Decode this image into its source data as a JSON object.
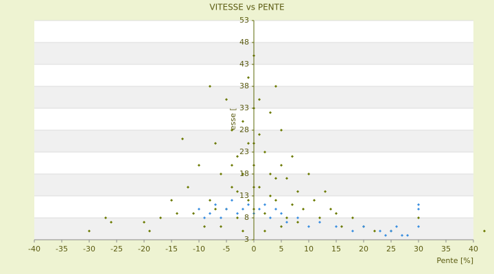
{
  "chart_data": {
    "type": "scatter",
    "title": "VITESSE vs PENTE",
    "x_label": "Pente [%]",
    "y_label": "Vitesse [km/h]",
    "xlim": [
      -40,
      40
    ],
    "xticks": [
      -40,
      -35,
      -30,
      -25,
      -20,
      -15,
      -10,
      -5,
      0,
      5,
      10,
      15,
      20,
      25,
      30,
      35,
      40
    ],
    "ylim": [
      3,
      53
    ],
    "yticks": [
      3,
      8,
      13,
      18,
      23,
      28,
      33,
      38,
      43,
      48,
      53
    ],
    "grid": true,
    "series": [
      {
        "color": "#6b7a00",
        "x": [
          -30,
          -27,
          -26,
          -20,
          -19,
          -17,
          -15,
          -14,
          -13,
          -12,
          -10,
          -8,
          -8,
          -7,
          -6,
          -5,
          -5,
          -4,
          -4,
          -3,
          -3,
          -2,
          -2,
          -1,
          -1,
          0,
          0,
          0,
          0,
          1,
          1,
          2,
          2,
          3,
          3,
          4,
          4,
          5,
          5,
          6,
          6,
          7,
          8,
          9,
          10,
          11,
          12,
          13,
          14,
          15,
          16,
          18,
          20,
          22,
          25,
          30,
          42,
          -9,
          -11,
          -6,
          -2,
          2,
          5,
          8,
          -1,
          1,
          -3,
          3,
          -7,
          7,
          0,
          0,
          -4,
          4
        ],
        "values": [
          5,
          8,
          7,
          7,
          5,
          8,
          12,
          9,
          26,
          15,
          20,
          38,
          12,
          25,
          18,
          35,
          10,
          28,
          15,
          22,
          8,
          30,
          18,
          25,
          12,
          45,
          33,
          20,
          10,
          27,
          15,
          23,
          9,
          32,
          18,
          38,
          12,
          28,
          20,
          17,
          8,
          22,
          14,
          10,
          18,
          12,
          8,
          14,
          10,
          9,
          6,
          8,
          6,
          5,
          5,
          8,
          5,
          6,
          9,
          6,
          5,
          5,
          6,
          7,
          40,
          35,
          14,
          13,
          10,
          11,
          25,
          15,
          20,
          17
        ]
      },
      {
        "color": "#3a8ee0",
        "x": [
          -10,
          -9,
          -8,
          -7,
          -6,
          -5,
          -4,
          -3,
          -2,
          -1,
          0,
          1,
          2,
          3,
          4,
          5,
          6,
          8,
          10,
          12,
          15,
          18,
          20,
          23,
          25,
          27,
          28,
          30,
          30,
          30,
          26,
          24
        ],
        "values": [
          10,
          8,
          9,
          11,
          8,
          10,
          12,
          9,
          10,
          11,
          9,
          10,
          11,
          8,
          10,
          9,
          7,
          8,
          6,
          7,
          6,
          5,
          6,
          5,
          5,
          4,
          4,
          10,
          6,
          11,
          6,
          4
        ]
      }
    ]
  }
}
